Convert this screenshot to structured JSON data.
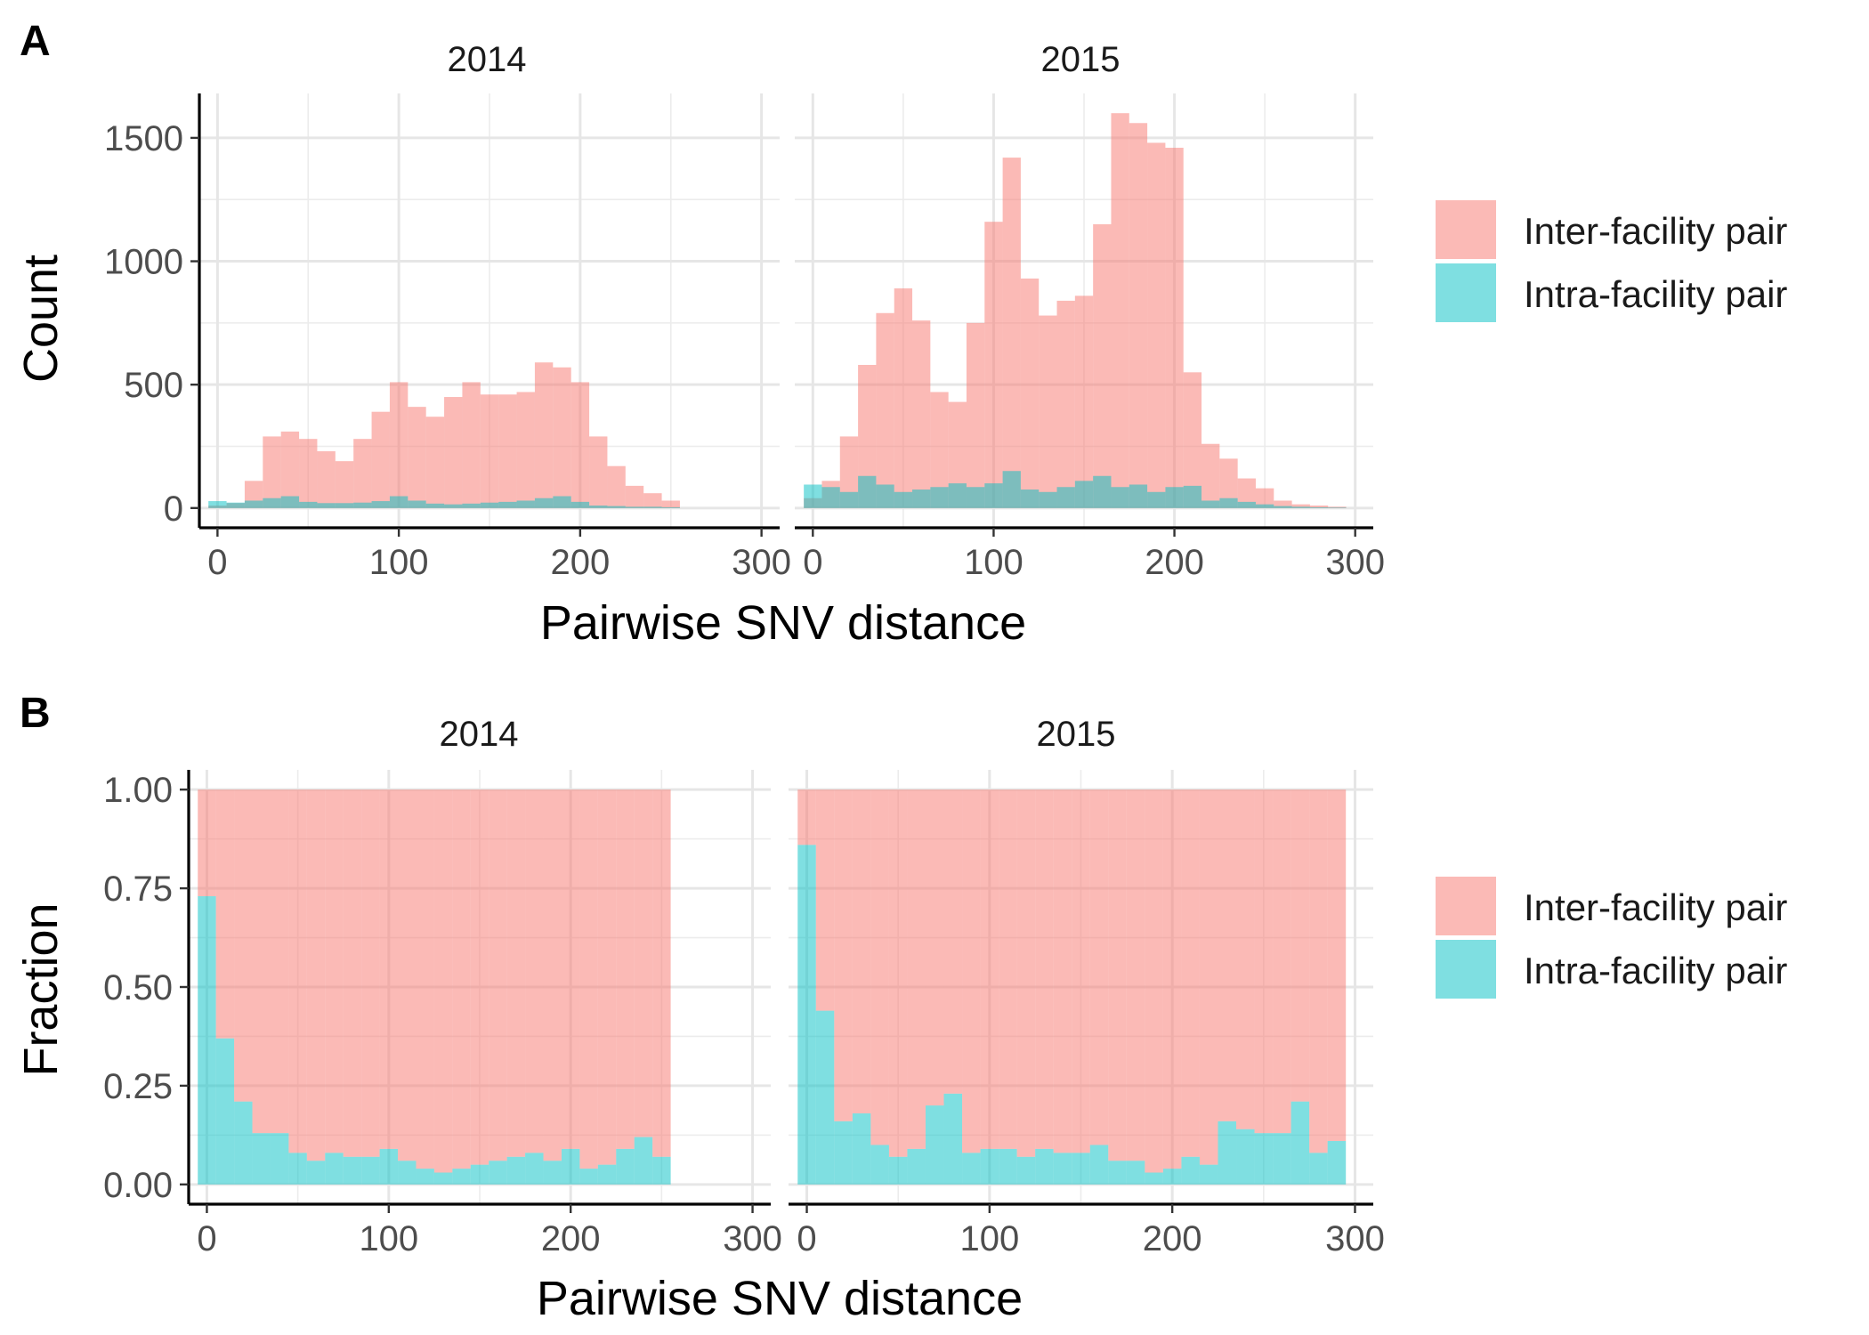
{
  "colors": {
    "inter": "#F8766D",
    "intra": "#00BFC4"
  },
  "legend": {
    "items": [
      "Inter-facility pair",
      "Intra-facility pair"
    ]
  },
  "chart_data": [
    {
      "panel": "A",
      "type": "bar",
      "stacked": false,
      "bar_alpha": 0.5,
      "xlabel": "Pairwise SNV distance",
      "ylabel": "Count",
      "xlim": [
        -10,
        310
      ],
      "ylim": [
        -80,
        1680
      ],
      "xticks": [
        0,
        100,
        200,
        300
      ],
      "yticks": [
        0,
        500,
        1000,
        1500
      ],
      "yticklabels": [
        "0",
        "500",
        "1000",
        "1500"
      ],
      "y_minor": [
        250,
        750,
        1250
      ],
      "bin_width": 10,
      "facets": [
        {
          "title": "2014",
          "bin_centers": [
            0,
            10,
            20,
            30,
            40,
            50,
            60,
            70,
            80,
            90,
            100,
            110,
            120,
            130,
            140,
            150,
            160,
            170,
            180,
            190,
            200,
            210,
            220,
            230,
            240,
            250
          ],
          "series": [
            {
              "name": "Inter-facility pair",
              "values": [
                10,
                20,
                110,
                290,
                310,
                280,
                230,
                190,
                280,
                390,
                510,
                410,
                370,
                450,
                510,
                460,
                460,
                470,
                590,
                570,
                510,
                290,
                170,
                90,
                60,
                30
              ]
            },
            {
              "name": "Intra-facility pair",
              "values": [
                28,
                22,
                30,
                40,
                48,
                25,
                20,
                20,
                22,
                28,
                48,
                30,
                18,
                15,
                18,
                22,
                25,
                30,
                40,
                48,
                25,
                10,
                8,
                5,
                5,
                3
              ]
            }
          ]
        },
        {
          "title": "2015",
          "bin_centers": [
            0,
            10,
            20,
            30,
            40,
            50,
            60,
            70,
            80,
            90,
            100,
            110,
            120,
            130,
            140,
            150,
            160,
            170,
            180,
            190,
            200,
            210,
            220,
            230,
            240,
            250,
            260,
            270,
            280,
            290
          ],
          "series": [
            {
              "name": "Inter-facility pair",
              "values": [
                40,
                110,
                290,
                580,
                790,
                890,
                760,
                470,
                430,
                750,
                1160,
                1420,
                930,
                780,
                840,
                860,
                1150,
                1600,
                1560,
                1480,
                1460,
                550,
                260,
                200,
                120,
                80,
                30,
                15,
                10,
                5
              ]
            },
            {
              "name": "Intra-facility pair",
              "values": [
                95,
                85,
                65,
                130,
                95,
                65,
                75,
                85,
                100,
                85,
                100,
                150,
                75,
                65,
                85,
                110,
                130,
                85,
                95,
                65,
                85,
                90,
                30,
                40,
                25,
                15,
                8,
                5,
                3,
                2
              ]
            }
          ]
        }
      ]
    },
    {
      "panel": "B",
      "type": "bar",
      "stacked": true,
      "position": "fill",
      "bar_alpha": 0.5,
      "xlabel": "Pairwise SNV distance",
      "ylabel": "Fraction",
      "xlim": [
        -10,
        310
      ],
      "ylim": [
        -0.05,
        1.05
      ],
      "xticks": [
        0,
        100,
        200,
        300
      ],
      "yticks": [
        0,
        0.25,
        0.5,
        0.75,
        1
      ],
      "yticklabels": [
        "0.00",
        "0.25",
        "0.50",
        "0.75",
        "1.00"
      ],
      "y_minor": [
        0.125,
        0.375,
        0.625,
        0.875
      ],
      "bin_width": 10,
      "facets": [
        {
          "title": "2014",
          "bin_centers": [
            0,
            10,
            20,
            30,
            40,
            50,
            60,
            70,
            80,
            90,
            100,
            110,
            120,
            130,
            140,
            150,
            160,
            170,
            180,
            190,
            200,
            210,
            220,
            230,
            240,
            250
          ],
          "series": [
            {
              "name": "Intra-facility pair",
              "values": [
                0.73,
                0.37,
                0.21,
                0.13,
                0.13,
                0.08,
                0.06,
                0.08,
                0.07,
                0.07,
                0.09,
                0.06,
                0.04,
                0.03,
                0.04,
                0.05,
                0.06,
                0.07,
                0.08,
                0.06,
                0.09,
                0.04,
                0.05,
                0.09,
                0.12,
                0.07
              ]
            },
            {
              "name": "Inter-facility pair",
              "values": [
                0.27,
                0.63,
                0.79,
                0.87,
                0.87,
                0.92,
                0.94,
                0.92,
                0.93,
                0.93,
                0.91,
                0.94,
                0.96,
                0.97,
                0.96,
                0.95,
                0.94,
                0.93,
                0.92,
                0.94,
                0.91,
                0.96,
                0.95,
                0.91,
                0.88,
                0.93
              ]
            }
          ]
        },
        {
          "title": "2015",
          "bin_centers": [
            0,
            10,
            20,
            30,
            40,
            50,
            60,
            70,
            80,
            90,
            100,
            110,
            120,
            130,
            140,
            150,
            160,
            170,
            180,
            190,
            200,
            210,
            220,
            230,
            240,
            250,
            260,
            270,
            280,
            290
          ],
          "series": [
            {
              "name": "Intra-facility pair",
              "values": [
                0.86,
                0.44,
                0.16,
                0.18,
                0.1,
                0.07,
                0.09,
                0.2,
                0.23,
                0.08,
                0.09,
                0.09,
                0.07,
                0.09,
                0.08,
                0.08,
                0.1,
                0.06,
                0.06,
                0.03,
                0.04,
                0.07,
                0.05,
                0.16,
                0.14,
                0.13,
                0.13,
                0.21,
                0.08,
                0.11
              ]
            },
            {
              "name": "Inter-facility pair",
              "values": [
                0.14,
                0.56,
                0.84,
                0.82,
                0.9,
                0.93,
                0.91,
                0.8,
                0.77,
                0.92,
                0.91,
                0.91,
                0.93,
                0.91,
                0.92,
                0.92,
                0.9,
                0.94,
                0.94,
                0.97,
                0.96,
                0.93,
                0.95,
                0.84,
                0.86,
                0.87,
                0.87,
                0.79,
                0.92,
                0.89
              ]
            }
          ]
        }
      ]
    }
  ]
}
